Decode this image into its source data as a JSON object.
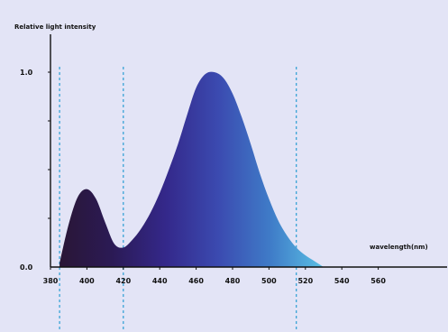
{
  "chart_data": {
    "type": "area",
    "title": "",
    "ylabel": "Relative light intensity",
    "xlabel": "wavelength(nm)",
    "xlim": [
      380,
      580
    ],
    "ylim": [
      0,
      1.0
    ],
    "x_ticks": [
      380,
      400,
      420,
      440,
      460,
      480,
      500,
      520,
      540,
      560
    ],
    "y_ticks": [
      {
        "value": 0,
        "label": "0.0"
      },
      {
        "value": 1.0,
        "label": "1.0"
      }
    ],
    "reference_lines": [
      385,
      420,
      515
    ],
    "series": [
      {
        "x": [
          385,
          390,
          395,
          400,
          405,
          410,
          415,
          420,
          425,
          430,
          435,
          440,
          445,
          450,
          455,
          460,
          465,
          470,
          475,
          480,
          485,
          490,
          495,
          500,
          505,
          510,
          515,
          520,
          525,
          530
        ],
        "y": [
          0.02,
          0.22,
          0.36,
          0.4,
          0.35,
          0.23,
          0.12,
          0.1,
          0.14,
          0.2,
          0.28,
          0.38,
          0.5,
          0.63,
          0.78,
          0.92,
          0.99,
          1.0,
          0.97,
          0.89,
          0.77,
          0.63,
          0.48,
          0.35,
          0.24,
          0.16,
          0.1,
          0.06,
          0.03,
          0.0
        ]
      }
    ],
    "colors": {
      "background": "#e3e4f6",
      "axis": "#111111",
      "reference_line": "#39a3d6",
      "gradient": [
        "#2a1636",
        "#2b1a55",
        "#34288a",
        "#3b4ab0",
        "#3f7cc8",
        "#5ac0e4"
      ]
    },
    "grid": false,
    "legend": "none"
  }
}
